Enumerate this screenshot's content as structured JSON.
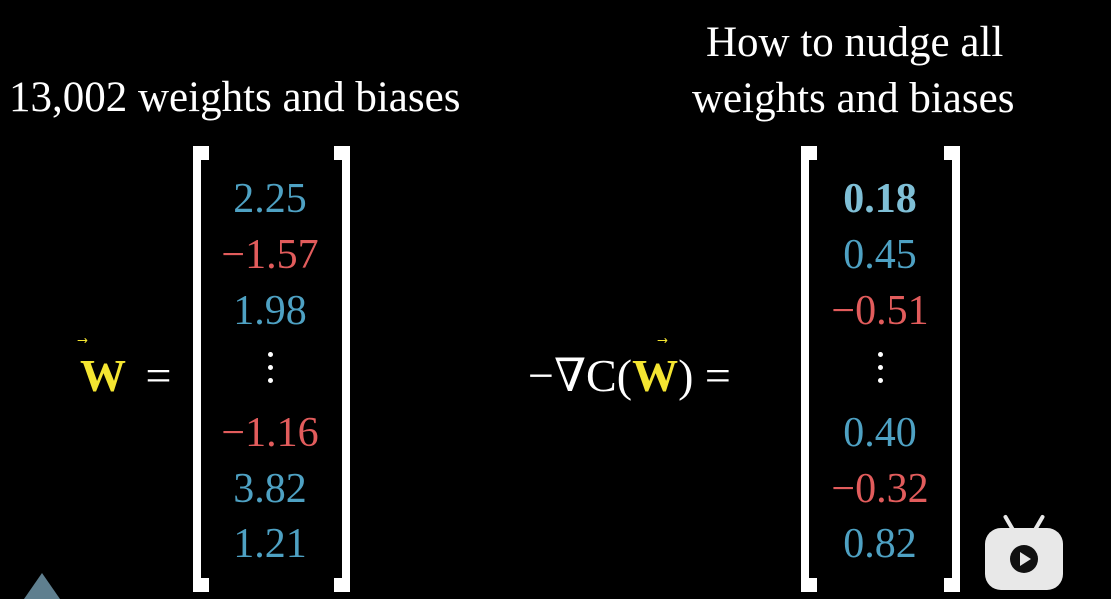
{
  "left": {
    "title": "13,002 weights and biases",
    "label_prefix": "",
    "label_vector": "W",
    "label_equals": "=",
    "entries": [
      {
        "text": "2.25",
        "color": "blue"
      },
      {
        "text": "−1.57",
        "color": "red"
      },
      {
        "text": "1.98",
        "color": "blue"
      },
      {
        "text": "−1.16",
        "color": "red"
      },
      {
        "text": "3.82",
        "color": "blue"
      },
      {
        "text": "1.21",
        "color": "blue"
      }
    ]
  },
  "right": {
    "title_line1": "How to nudge all",
    "title_line2": "weights and biases",
    "label_prefix": "−∇C(",
    "label_vector": "W",
    "label_suffix": ") =",
    "entries": [
      {
        "text": "0.18",
        "color": "bold-blue"
      },
      {
        "text": "0.45",
        "color": "blue"
      },
      {
        "text": "−0.51",
        "color": "red"
      },
      {
        "text": "0.40",
        "color": "blue"
      },
      {
        "text": "−0.32",
        "color": "red"
      },
      {
        "text": "0.82",
        "color": "blue"
      }
    ]
  },
  "colors": {
    "blue": "#4ea1c3",
    "red": "#e25c5c",
    "yellow": "#f4e531",
    "background": "#000000"
  },
  "icons": {
    "play_button": "play-icon",
    "corner_shape": "triangle-icon"
  }
}
